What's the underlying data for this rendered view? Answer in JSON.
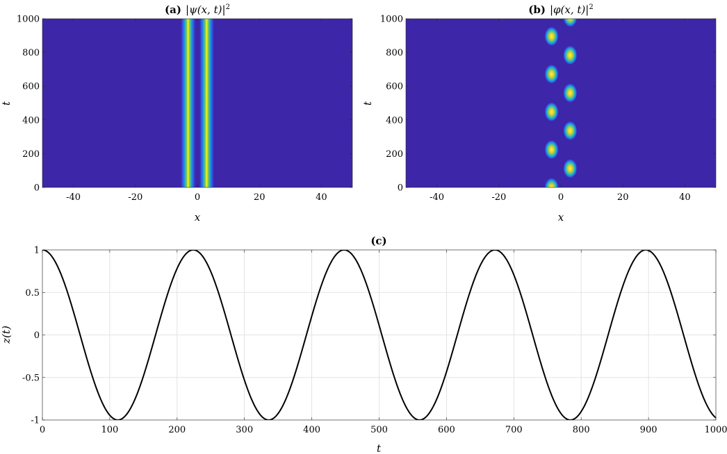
{
  "chart_data": [
    {
      "type": "heatmap",
      "panel": "a",
      "title_tag": "(a)",
      "title_expr": "|ψ(x, t)|",
      "title_exp": "2",
      "xlabel": "x",
      "ylabel": "t",
      "xlim": [
        -50,
        50
      ],
      "ylim": [
        0,
        1000
      ],
      "xticks": [
        -40,
        -20,
        0,
        20,
        40
      ],
      "yticks": [
        0,
        200,
        400,
        600,
        800,
        1000
      ],
      "background_color": "#3e26a8",
      "stripes": [
        {
          "center_x": -3,
          "width_x": 1.8
        },
        {
          "center_x": 3,
          "width_x": 1.8
        }
      ]
    },
    {
      "type": "heatmap",
      "panel": "b",
      "title_tag": "(b)",
      "title_expr": "|φ(x, t)|",
      "title_exp": "2",
      "xlabel": "x",
      "ylabel": "t",
      "xlim": [
        -50,
        50
      ],
      "ylim": [
        0,
        1000
      ],
      "xticks": [
        -40,
        -20,
        0,
        20,
        40
      ],
      "yticks": [
        0,
        200,
        400,
        600,
        800,
        1000
      ],
      "background_color": "#3e26a8",
      "blobs": [
        {
          "x": -3,
          "t": 0
        },
        {
          "x": -3,
          "t": 224
        },
        {
          "x": -3,
          "t": 448
        },
        {
          "x": -3,
          "t": 672
        },
        {
          "x": -3,
          "t": 896
        },
        {
          "x": 3,
          "t": 112
        },
        {
          "x": 3,
          "t": 336
        },
        {
          "x": 3,
          "t": 560
        },
        {
          "x": 3,
          "t": 784
        },
        {
          "x": 3,
          "t": 1008
        }
      ]
    },
    {
      "type": "line",
      "panel": "c",
      "title_tag": "(c)",
      "xlabel": "t",
      "ylabel": "z(t)",
      "xlim": [
        0,
        1000
      ],
      "ylim": [
        -1,
        1
      ],
      "xticks": [
        0,
        100,
        200,
        300,
        400,
        500,
        600,
        700,
        800,
        900,
        1000
      ],
      "yticks": [
        -1,
        -0.5,
        0,
        0.5,
        1
      ],
      "ytick_labels": [
        "-1",
        "-0.5",
        "0",
        "0.5",
        "1"
      ],
      "grid": true,
      "series": [
        {
          "name": "z(t)",
          "color": "#000000",
          "function": "cos(2*pi*t/period)",
          "period": 224
        }
      ]
    }
  ]
}
